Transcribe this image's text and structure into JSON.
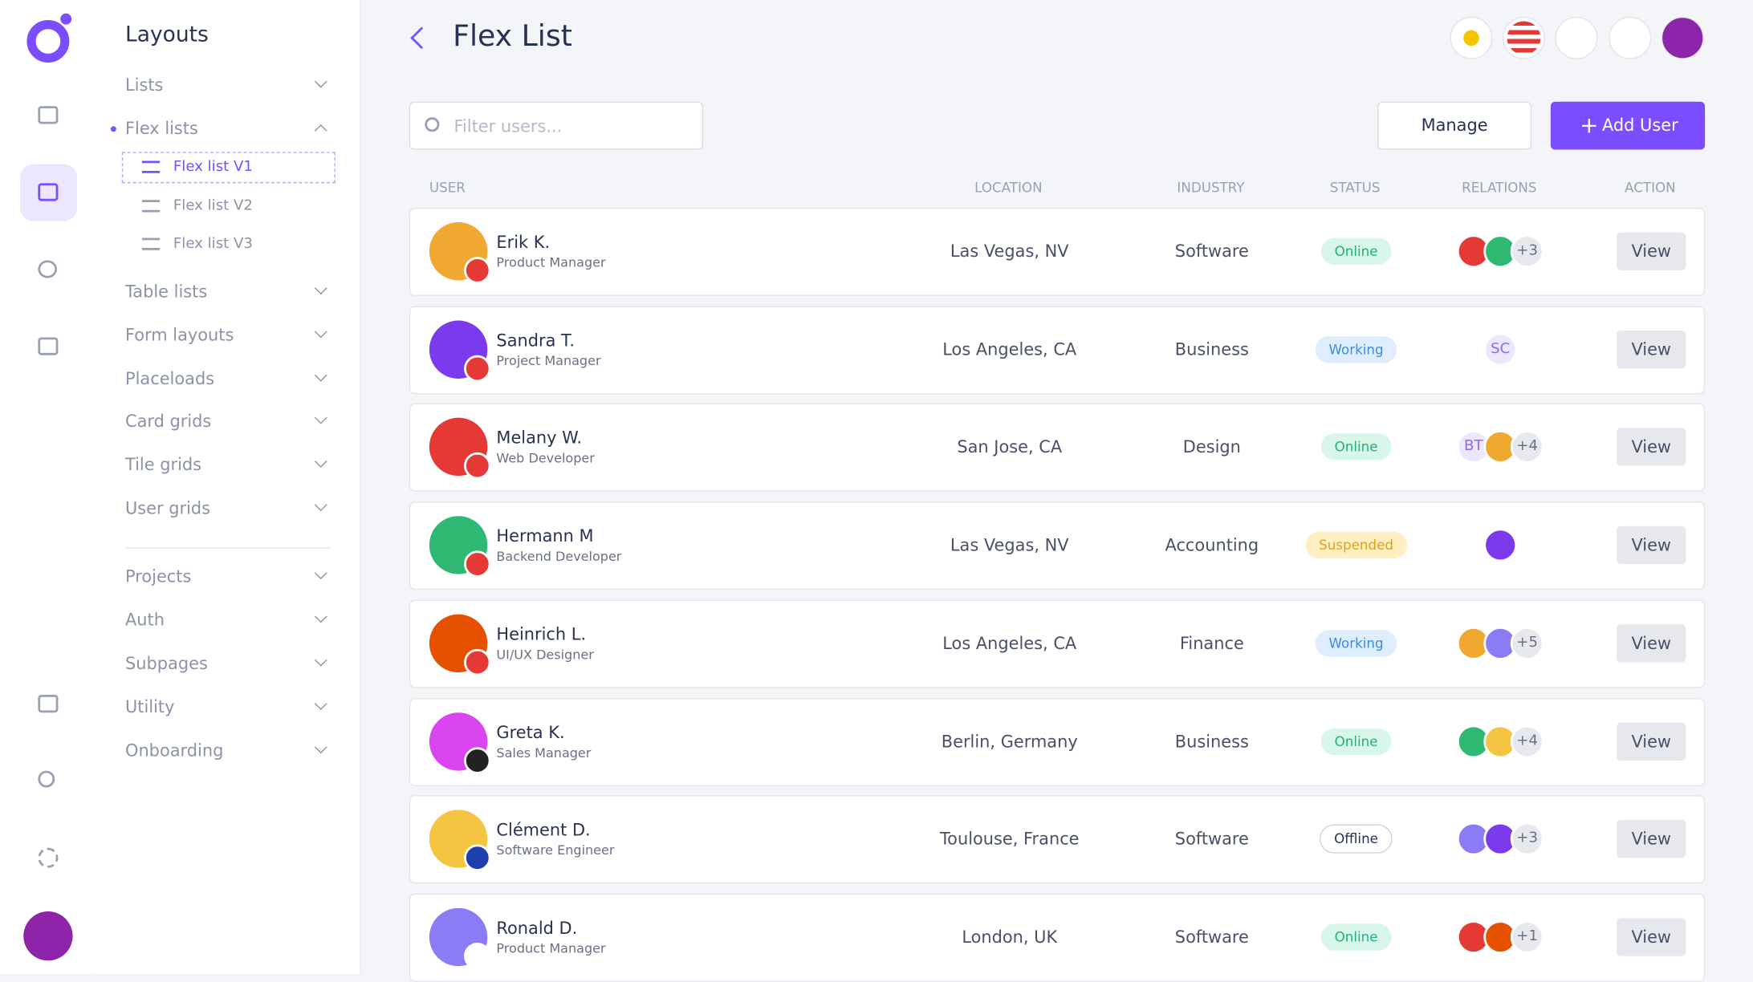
{
  "sidebar": {
    "title": "Layouts",
    "menu": [
      "Lists",
      "Flex lists"
    ],
    "submenu": [
      "Flex list V1",
      "Flex list V2",
      "Flex list V3"
    ],
    "menu_more": [
      "Table lists",
      "Form layouts",
      "Placeloads",
      "Card grids",
      "Tile grids",
      "User grids"
    ],
    "menu_bottom": [
      "Projects",
      "Auth",
      "Subpages",
      "Utility",
      "Onboarding"
    ]
  },
  "header": {
    "title": "Flex List"
  },
  "toolbar": {
    "search_placeholder": "Filter users...",
    "manage": "Manage",
    "add_user": "Add User"
  },
  "table": {
    "columns": [
      "USER",
      "LOCATION",
      "INDUSTRY",
      "STATUS",
      "RELATIONS",
      "ACTION"
    ],
    "rows": [
      {
        "name": "Erik K.",
        "role": "Product Manager",
        "location": "Las Vegas, NV",
        "industry": "Software",
        "status": "Online",
        "relations": [
          "+3"
        ],
        "action": "View"
      },
      {
        "name": "Sandra T.",
        "role": "Project Manager",
        "location": "Los Angeles, CA",
        "industry": "Business",
        "status": "Working",
        "relations": [
          "SC"
        ],
        "action": "View"
      },
      {
        "name": "Melany W.",
        "role": "Web Developer",
        "location": "San Jose, CA",
        "industry": "Design",
        "status": "Online",
        "relations": [
          "BT",
          "+4"
        ],
        "action": "View"
      },
      {
        "name": "Hermann M",
        "role": "Backend Developer",
        "location": "Las Vegas, NV",
        "industry": "Accounting",
        "status": "Suspended",
        "relations": [],
        "action": "View"
      },
      {
        "name": "Heinrich L.",
        "role": "UI/UX Designer",
        "location": "Los Angeles, CA",
        "industry": "Finance",
        "status": "Working",
        "relations": [
          "+5"
        ],
        "action": "View"
      },
      {
        "name": "Greta K.",
        "role": "Sales Manager",
        "location": "Berlin, Germany",
        "industry": "Business",
        "status": "Online",
        "relations": [
          "+4"
        ],
        "action": "View"
      },
      {
        "name": "Clément D.",
        "role": "Software Engineer",
        "location": "Toulouse, France",
        "industry": "Software",
        "status": "Offline",
        "relations": [
          "+3"
        ],
        "action": "View"
      },
      {
        "name": "Ronald D.",
        "role": "Product Manager",
        "location": "London, UK",
        "industry": "Software",
        "status": "Online",
        "relations": [
          "+1"
        ],
        "action": "View"
      }
    ]
  }
}
